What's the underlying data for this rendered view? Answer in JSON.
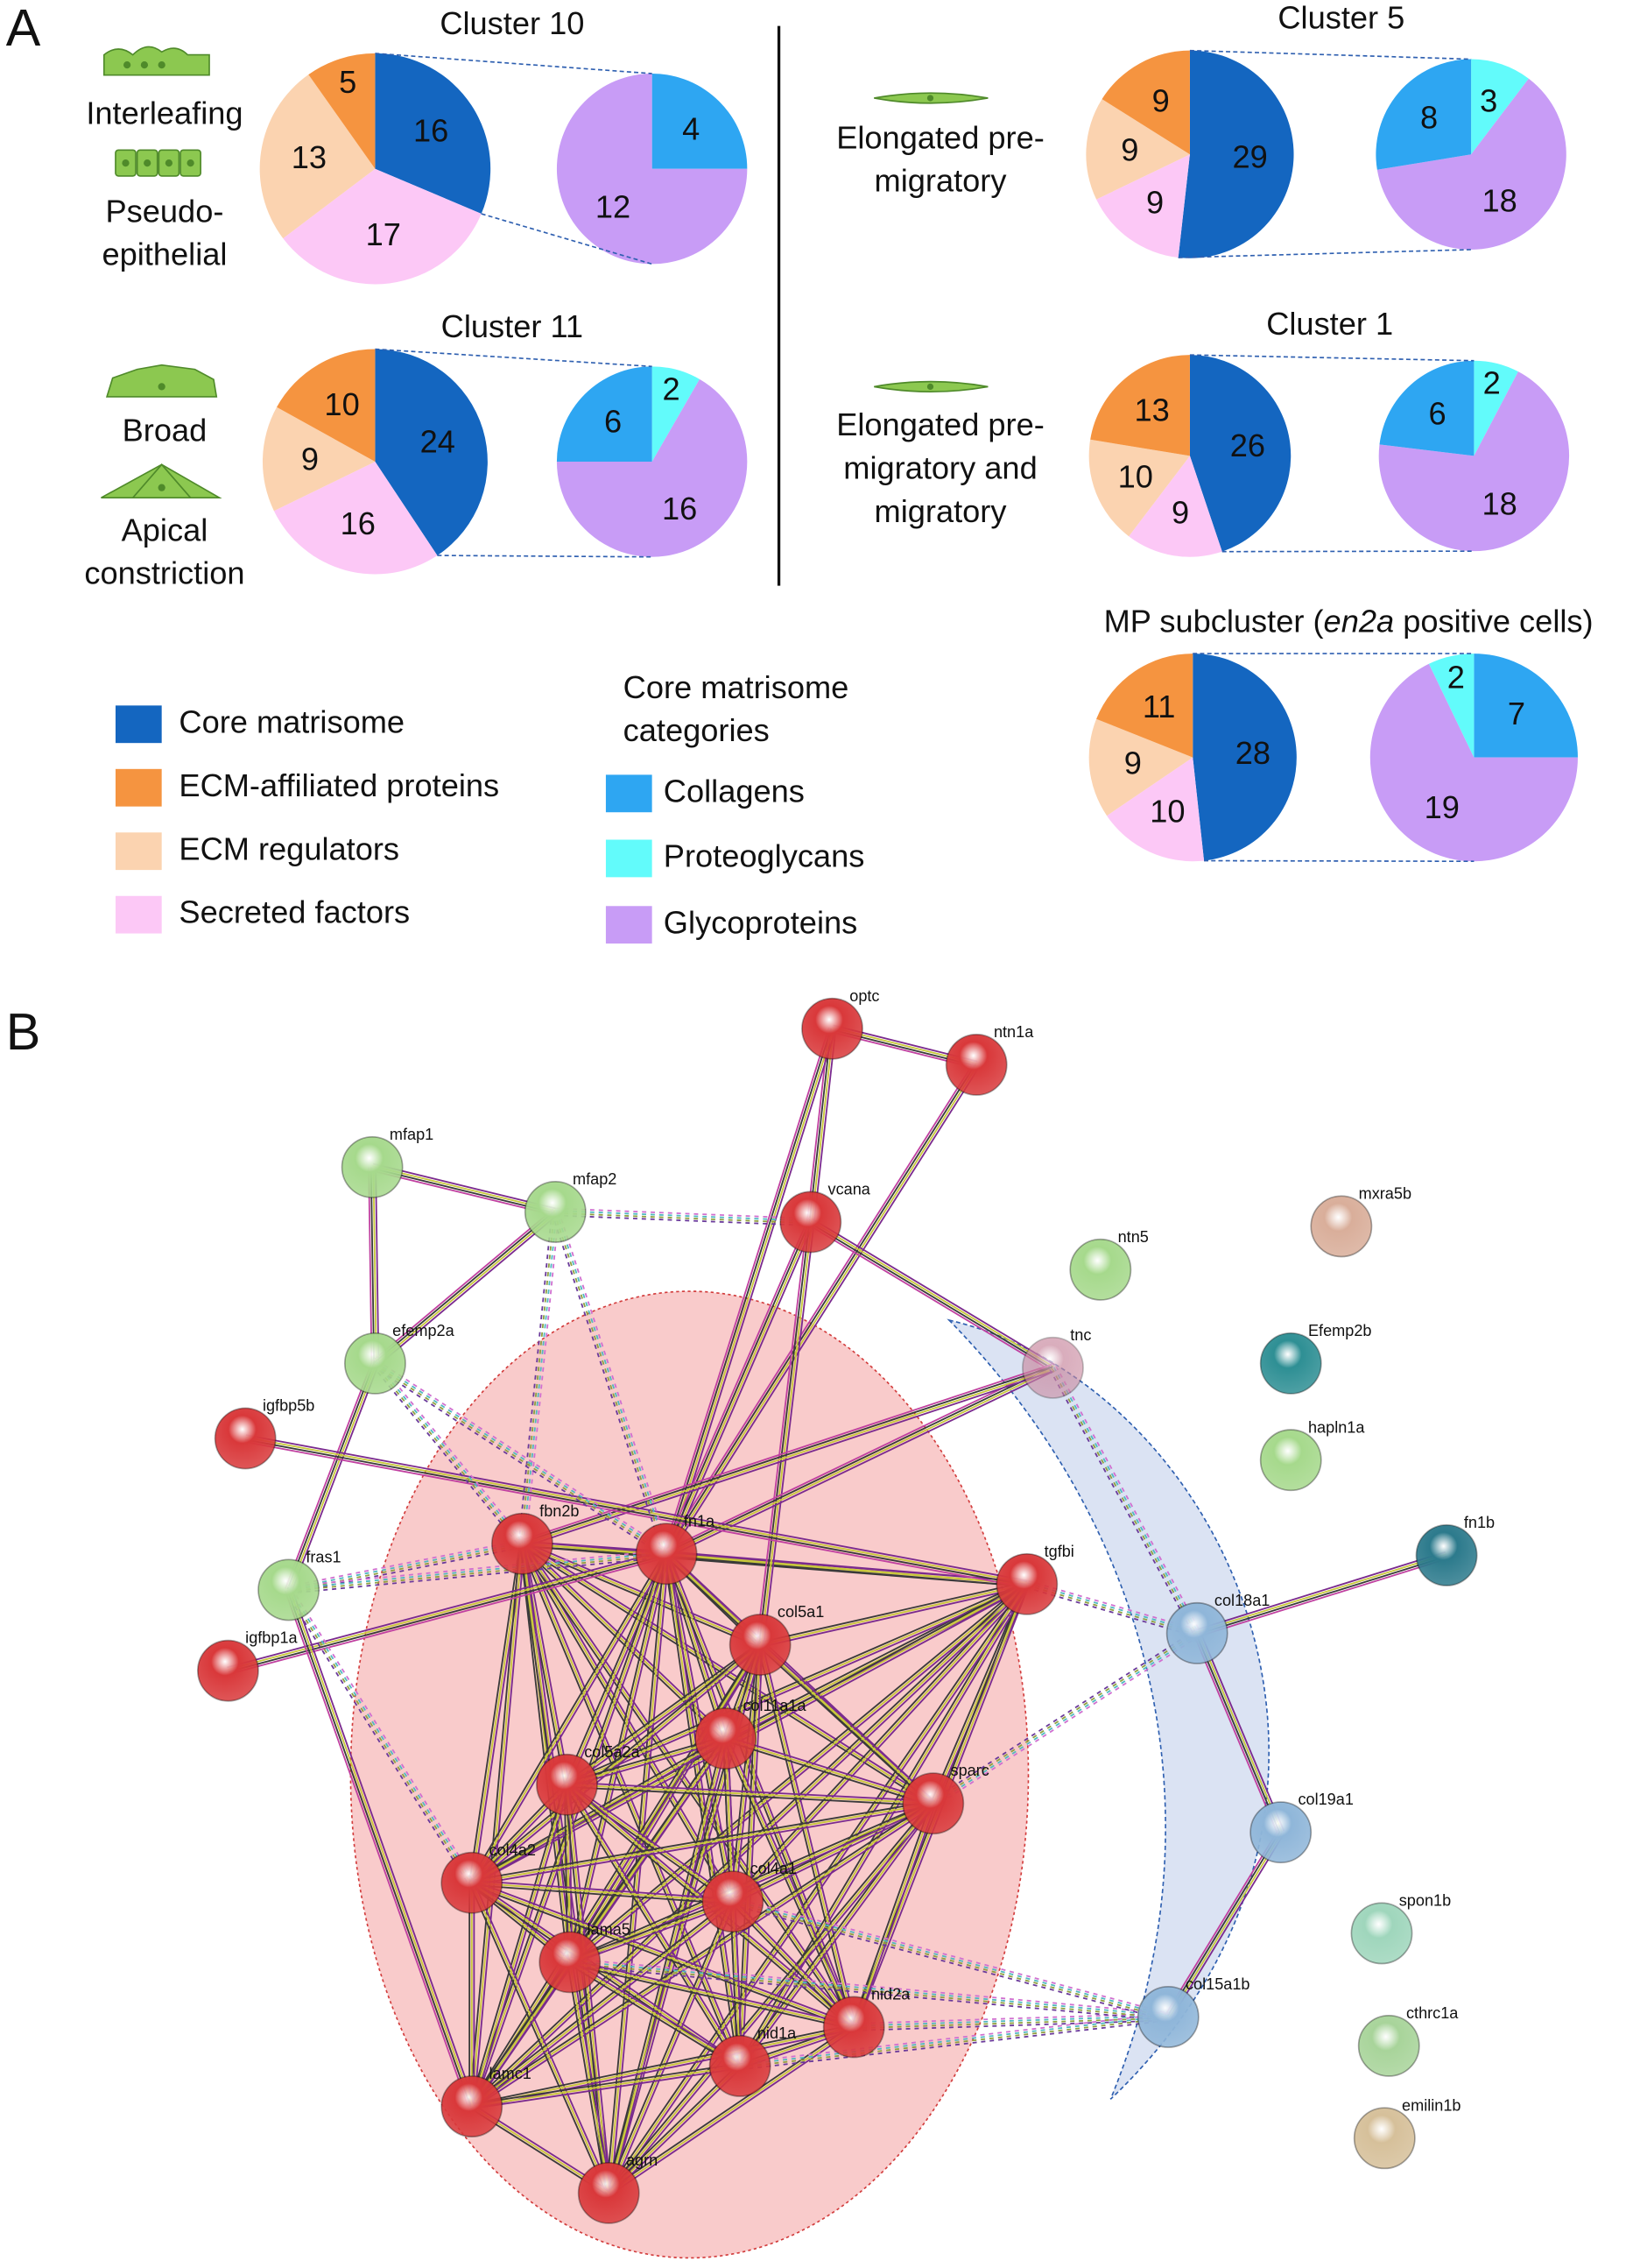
{
  "panel_labels": [
    "A",
    "B"
  ],
  "cell_types": [
    {
      "lines": [
        "Interleafing"
      ]
    },
    {
      "lines": [
        "Pseudo-",
        "epithelial"
      ]
    },
    {
      "lines": [
        "Broad"
      ]
    },
    {
      "lines": [
        "Apical",
        "constriction"
      ]
    },
    {
      "lines": [
        "Elongated pre-",
        "migratory"
      ]
    },
    {
      "lines": [
        "Elongated pre-",
        "migratory and",
        "migratory"
      ]
    }
  ],
  "legend": {
    "items": [
      {
        "name": "Core matrisome",
        "color": "#1466c0"
      },
      {
        "name": "ECM-affiliated proteins",
        "color": "#f59440"
      },
      {
        "name": "ECM regulators",
        "color": "#fbd3b0"
      },
      {
        "name": "Secreted factors",
        "color": "#fcc8f6"
      }
    ],
    "core_title": [
      "Core matrisome",
      "categories"
    ],
    "core_items": [
      {
        "name": "Collagens",
        "color": "#2ea6f2"
      },
      {
        "name": "Proteoglycans",
        "color": "#62fbfb"
      },
      {
        "name": "Glycoproteins",
        "color": "#c89cf6"
      }
    ]
  },
  "chart_data": [
    {
      "type": "pie",
      "title": "Cluster 10",
      "values": [
        16,
        5,
        13,
        17
      ],
      "breakdown_values": [
        4,
        0,
        12
      ]
    },
    {
      "type": "pie",
      "title": "Cluster 11",
      "values": [
        24,
        10,
        9,
        16
      ],
      "breakdown_values": [
        6,
        2,
        16
      ]
    },
    {
      "type": "pie",
      "title": "Cluster 5",
      "values": [
        29,
        9,
        9,
        9
      ],
      "breakdown_values": [
        8,
        3,
        18
      ]
    },
    {
      "type": "pie",
      "title": "Cluster 1",
      "values": [
        26,
        13,
        10,
        9
      ],
      "breakdown_values": [
        6,
        2,
        18
      ]
    },
    {
      "type": "pie",
      "title": [
        "MP subcluster (",
        "en2a",
        " positive cells)"
      ],
      "values": [
        28,
        11,
        9,
        10
      ],
      "breakdown_values": [
        7,
        2,
        19
      ]
    }
  ],
  "network": {
    "nodes": [
      {
        "label": "optc",
        "color": "#d9383a"
      },
      {
        "label": "ntn1a",
        "color": "#d9383a"
      },
      {
        "label": "mfap1",
        "color": "#a6d98c"
      },
      {
        "label": "mfap2",
        "color": "#a6d98c"
      },
      {
        "label": "vcana",
        "color": "#d9383a"
      },
      {
        "label": "mxra5b",
        "color": "#d9ae9a"
      },
      {
        "label": "ntn5",
        "color": "#a6d98c"
      },
      {
        "label": "tnc",
        "color": "#c98aa0"
      },
      {
        "label": "Efemp2b",
        "color": "#2e8f94"
      },
      {
        "label": "efemp2a",
        "color": "#a6d98c"
      },
      {
        "label": "hapln1a",
        "color": "#a6d98c"
      },
      {
        "label": "igfbp5b",
        "color": "#d9383a"
      },
      {
        "label": "fbn2b",
        "color": "#d9383a"
      },
      {
        "label": "fn1a",
        "color": "#d9383a"
      },
      {
        "label": "tgfbi",
        "color": "#d9383a"
      },
      {
        "label": "fn1b",
        "color": "#2c7a8c"
      },
      {
        "label": "fras1",
        "color": "#a6d98c"
      },
      {
        "label": "col18a1",
        "color": "#8fb6d9"
      },
      {
        "label": "col5a1",
        "color": "#d9383a"
      },
      {
        "label": "igfbp1a",
        "color": "#d9383a"
      },
      {
        "label": "col11a1a",
        "color": "#d9383a"
      },
      {
        "label": "col5a2a",
        "color": "#d9383a"
      },
      {
        "label": "sparc",
        "color": "#d9383a"
      },
      {
        "label": "col19a1",
        "color": "#8fb6d9"
      },
      {
        "label": "col4a2",
        "color": "#d9383a"
      },
      {
        "label": "col4a1",
        "color": "#d9383a"
      },
      {
        "label": "spon1b",
        "color": "#9fd6bc"
      },
      {
        "label": "lama5",
        "color": "#d9383a"
      },
      {
        "label": "nid2a",
        "color": "#d9383a"
      },
      {
        "label": "col15a1b",
        "color": "#8fb6d9"
      },
      {
        "label": "cthrc1a",
        "color": "#a8d49a"
      },
      {
        "label": "nid1a",
        "color": "#d9383a"
      },
      {
        "label": "lamc1",
        "color": "#d9383a"
      },
      {
        "label": "emilin1b",
        "color": "#d6c09a"
      },
      {
        "label": "agrn",
        "color": "#d9383a"
      }
    ]
  }
}
